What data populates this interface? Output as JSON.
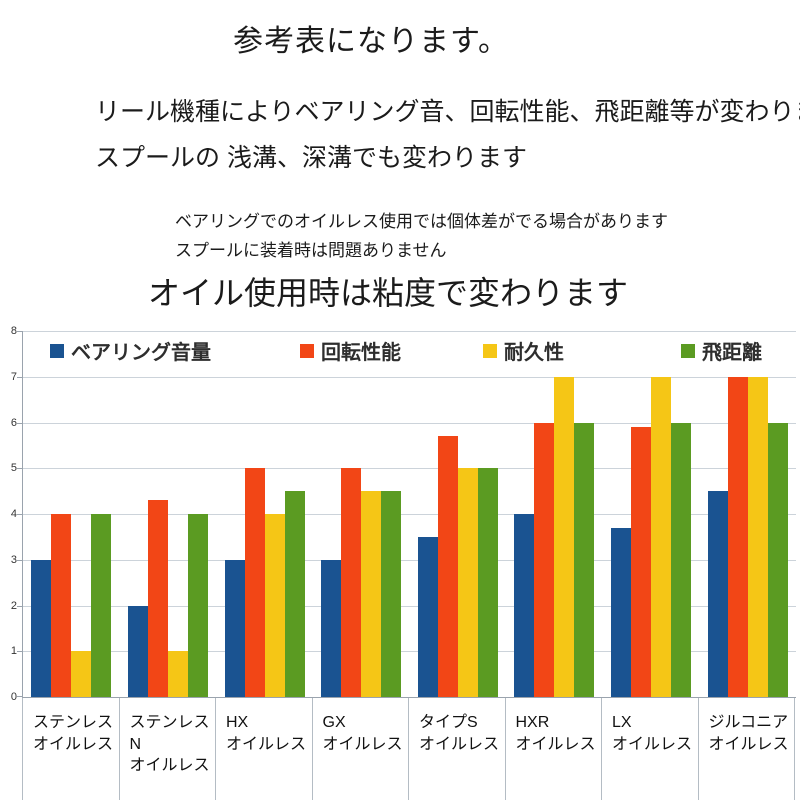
{
  "header": {
    "title": "参考表になります。",
    "subtitle_line1": "リール機種によりベアリング音、回転性能、飛距離等が変わります。",
    "subtitle_line2": "スプールの 浅溝、深溝でも変わります",
    "note_line1": "ベアリングでのオイルレス使用では個体差がでる場合があります",
    "note_line2": "スプールに装着時は問題ありません",
    "emphasis": "オイル使用時は粘度で変わります"
  },
  "chart_data": {
    "type": "bar",
    "title": "",
    "xlabel": "",
    "ylabel": "",
    "ylim": [
      0,
      8
    ],
    "ytick_step": 1,
    "grid": true,
    "legend_position": "top-inside",
    "categories": [
      [
        "ステンレス",
        "オイルレス"
      ],
      [
        "ステンレスN",
        "オイルレス"
      ],
      [
        "HX",
        "オイルレス"
      ],
      [
        "GX",
        "オイルレス"
      ],
      [
        "タイプS",
        "オイルレス"
      ],
      [
        "HXR",
        "オイルレス"
      ],
      [
        "LX",
        "オイルレス"
      ],
      [
        "ジルコニア",
        "オイルレス"
      ]
    ],
    "series": [
      {
        "name": "ベアリング音量",
        "color": "#1a5391",
        "values": [
          3,
          2,
          3,
          3,
          3.5,
          4,
          3.7,
          4.5
        ]
      },
      {
        "name": "回転性能",
        "color": "#f24616",
        "values": [
          4,
          4.3,
          5,
          5,
          5.7,
          6,
          5.9,
          7
        ]
      },
      {
        "name": "耐久性",
        "color": "#f5c616",
        "values": [
          1,
          1,
          4,
          4.5,
          5,
          7,
          7,
          7
        ]
      },
      {
        "name": "飛距離",
        "color": "#5b9b22",
        "values": [
          4,
          4,
          4.5,
          4.5,
          5,
          6,
          6,
          6
        ]
      }
    ],
    "colors": {
      "gridline": "#ccd3da",
      "axis": "#9aa3ad",
      "tick_label": "#333333",
      "legend_text": "#2e2e2e"
    }
  }
}
